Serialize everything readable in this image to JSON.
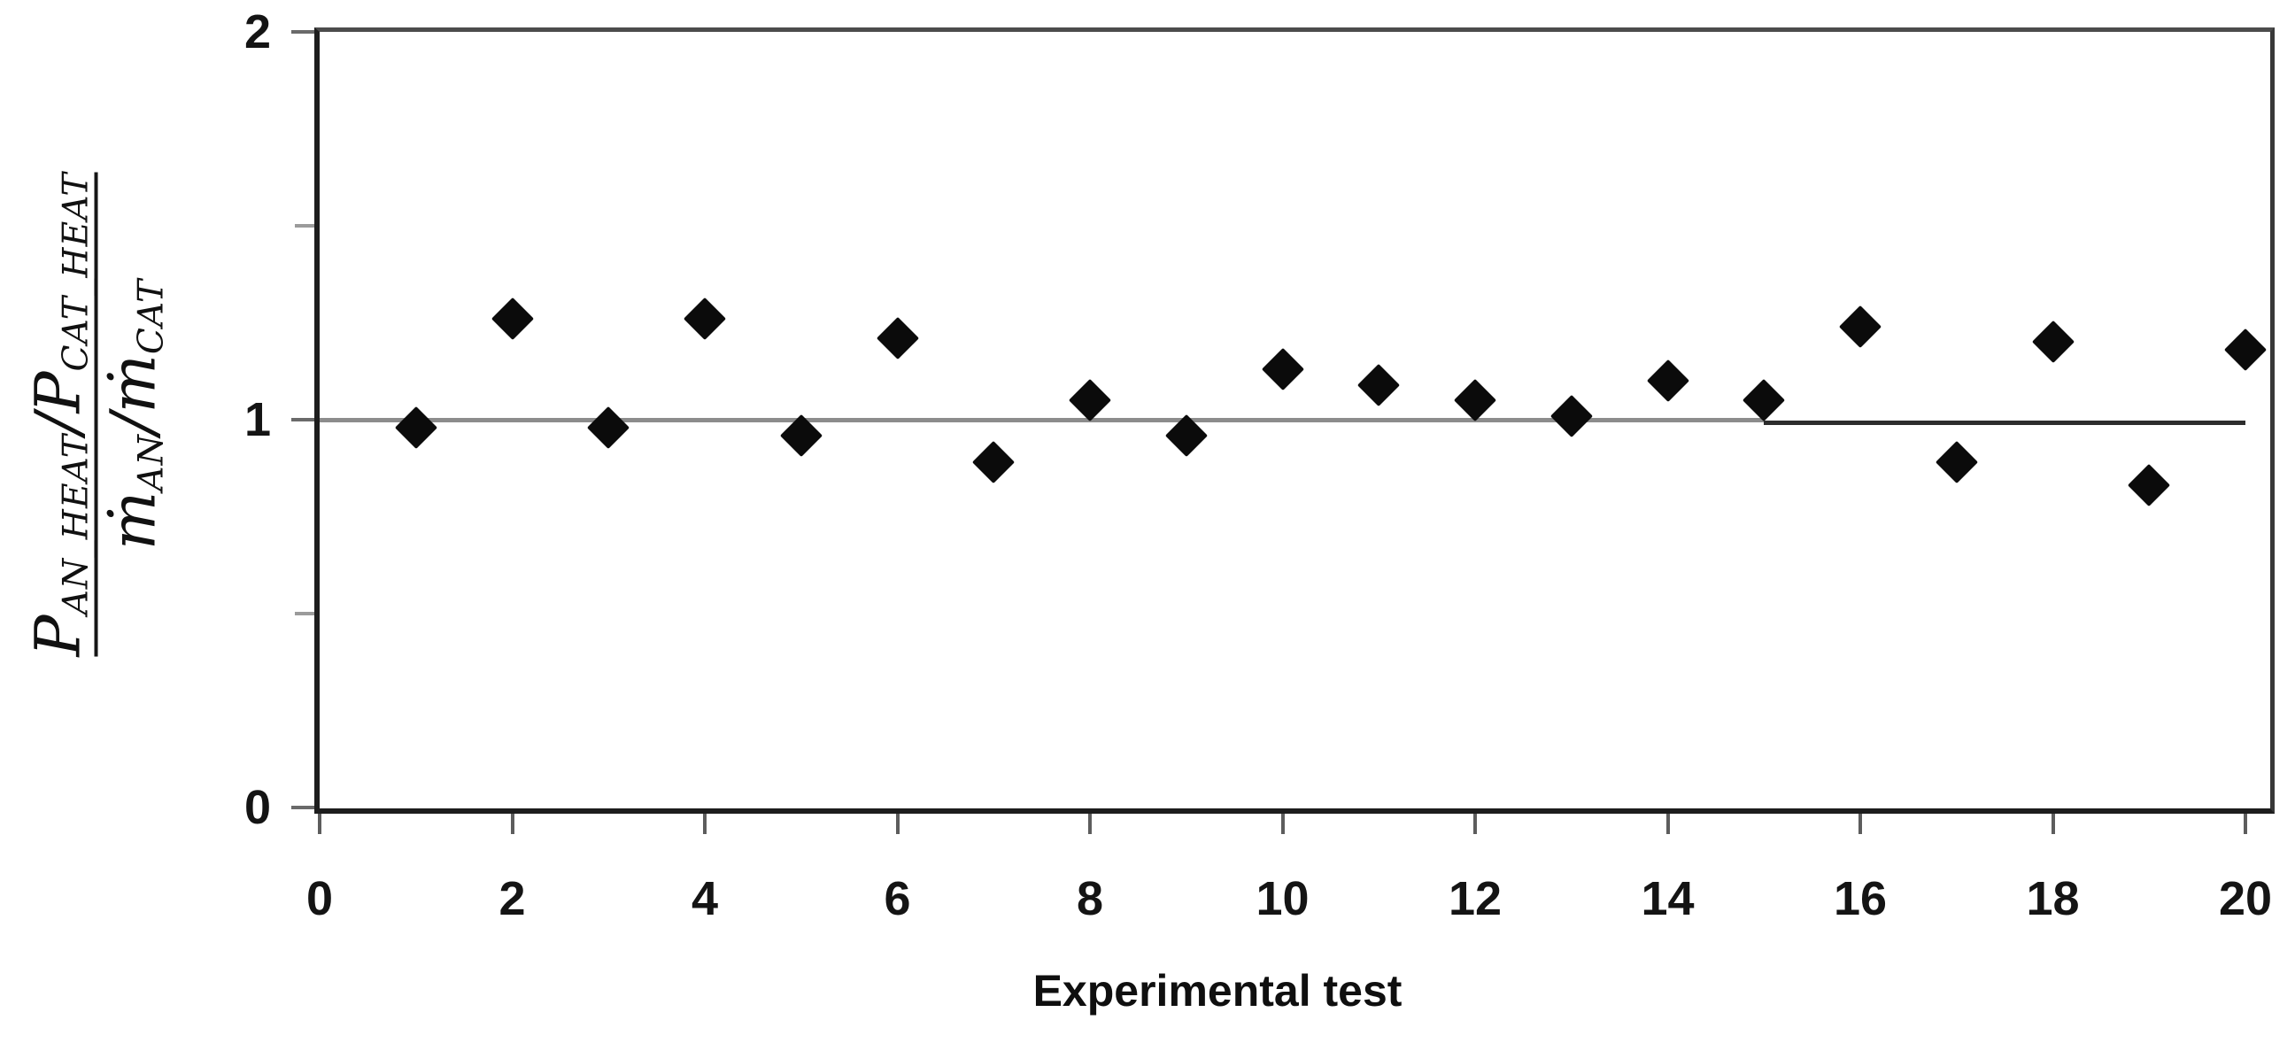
{
  "figure": {
    "background": "#ffffff"
  },
  "chart_data": {
    "type": "scatter",
    "title": "",
    "xlabel": "Experimental test",
    "ylabel": {
      "numerator": [
        {
          "base": "P",
          "sub": "AN_HEAT"
        },
        {
          "base": "/",
          "sub": ""
        },
        {
          "base": "P",
          "sub": "CAT_HEAT"
        }
      ],
      "denominator": [
        {
          "base": "ṁ",
          "sub": "AN"
        },
        {
          "base": "/",
          "sub": ""
        },
        {
          "base": "ṁ",
          "sub": "CAT"
        }
      ]
    },
    "x": [
      1,
      2,
      3,
      4,
      5,
      6,
      7,
      8,
      9,
      10,
      11,
      12,
      13,
      14,
      15,
      16,
      17,
      18,
      19,
      20
    ],
    "values": [
      0.98,
      1.26,
      0.98,
      1.26,
      0.96,
      1.21,
      0.89,
      1.05,
      0.96,
      1.13,
      1.09,
      1.05,
      1.01,
      1.1,
      1.05,
      1.24,
      0.89,
      1.2,
      0.83,
      1.18
    ],
    "xlim": [
      0,
      20.3
    ],
    "ylim": [
      0,
      2
    ],
    "xticks": [
      0,
      2,
      4,
      6,
      8,
      10,
      12,
      14,
      16,
      18,
      20
    ],
    "yticks": [
      0,
      1,
      2
    ],
    "y_minor_ticks": [
      0.5,
      1.5
    ],
    "reference_lines": [
      {
        "y": 1,
        "x_start": 0,
        "x_end": 15,
        "color": "#8c8c8c",
        "thickness": 5
      },
      {
        "y": 1,
        "x_start": 15,
        "x_end": 20,
        "color": "#2d2d2d",
        "thickness": 5
      }
    ],
    "marker": {
      "shape": "diamond",
      "color": "#0b0b0b"
    },
    "grid": false,
    "legend": false
  }
}
